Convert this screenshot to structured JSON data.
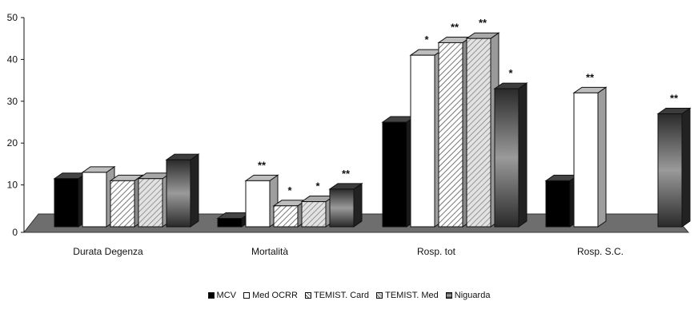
{
  "chart_data": {
    "type": "bar",
    "title": "",
    "xlabel": "",
    "ylabel": "",
    "ylim": [
      0,
      50
    ],
    "yticks": [
      "0",
      "10",
      "20",
      "30",
      "40",
      "50"
    ],
    "grid": false,
    "legend_position": "bottom",
    "categories": [
      "Durata Degenza",
      "Mortalità",
      "Rosp. tot",
      "Rosp. S.C."
    ],
    "series": [
      {
        "name": "MCV",
        "values": [
          11.5,
          2,
          25,
          11
        ],
        "color": "#000000",
        "pattern": "solid"
      },
      {
        "name": "Med OCRR",
        "values": [
          13,
          11,
          41,
          32
        ],
        "color": "#ffffff",
        "pattern": "solid"
      },
      {
        "name": "TEMIST. Card",
        "values": [
          11,
          5,
          44,
          null
        ],
        "color": "#ffffff",
        "pattern": "diagonal"
      },
      {
        "name": "TEMIST. Med",
        "values": [
          11.5,
          6,
          45,
          null
        ],
        "color": "#d6d6d6",
        "pattern": "diagonal-grey"
      },
      {
        "name": "Niguarda",
        "values": [
          16,
          9,
          33,
          27
        ],
        "color": "#555555",
        "pattern": "gradient"
      }
    ],
    "annotations": [
      [
        null,
        null,
        null,
        null,
        null
      ],
      [
        null,
        "**",
        "*",
        "*",
        "**"
      ],
      [
        null,
        "*",
        "**",
        "**",
        "*"
      ],
      [
        null,
        "**",
        null,
        null,
        "**"
      ]
    ]
  },
  "legend": {
    "items": [
      "MCV",
      "Med OCRR",
      "TEMIST. Card",
      "TEMIST. Med",
      "Niguarda"
    ]
  }
}
